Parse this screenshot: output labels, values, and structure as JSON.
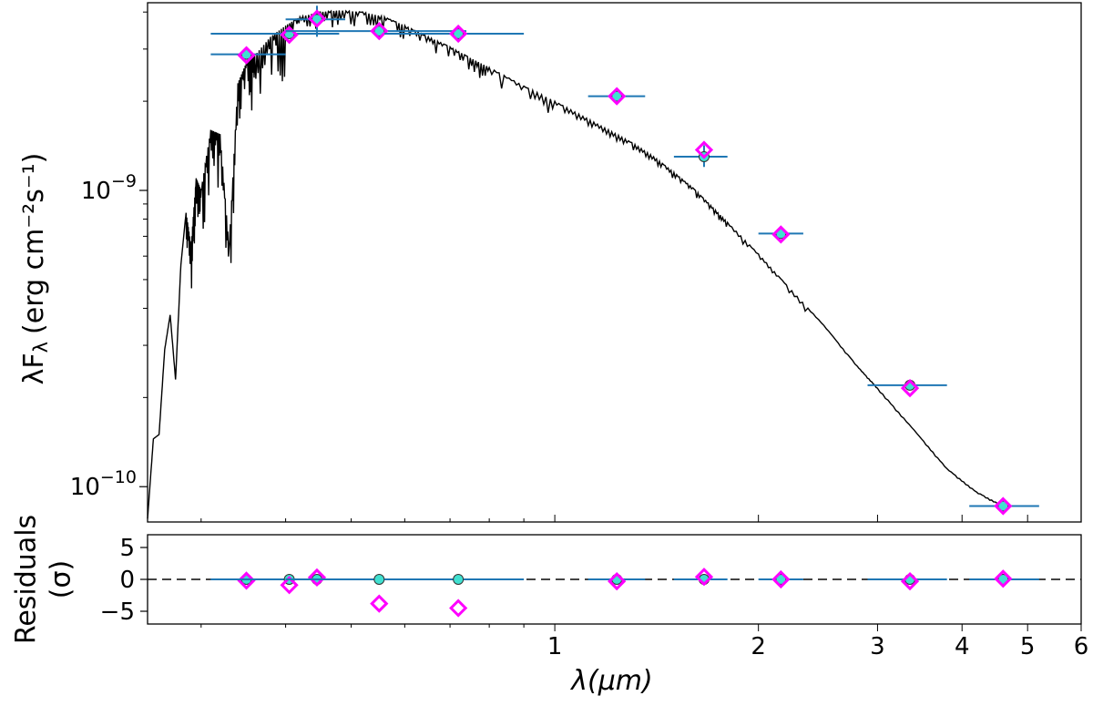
{
  "chart_data": [
    {
      "type": "scatter",
      "panel": "sed",
      "x_scale": "log",
      "y_scale": "log",
      "xlim": [
        0.25,
        6.0
      ],
      "ylim": [
        7.6e-11,
        4.3e-09
      ],
      "ylabel": "λF",
      "ylabel_sub": "λ",
      "ylabel_units": "(erg cm⁻²s⁻¹)",
      "y_ticks": [
        {
          "value": 1e-09,
          "base": "10",
          "exp": "−9"
        },
        {
          "value": 1e-10,
          "base": "10",
          "exp": "−10"
        }
      ],
      "model_spectrum": {
        "color": "#000000",
        "x": [
          0.25,
          0.255,
          0.26,
          0.265,
          0.27,
          0.275,
          0.28,
          0.285,
          0.29,
          0.295,
          0.3,
          0.31,
          0.32,
          0.33,
          0.34,
          0.35,
          0.36,
          0.38,
          0.4,
          0.42,
          0.45,
          0.48,
          0.52,
          0.56,
          0.6,
          0.65,
          0.7,
          0.75,
          0.8,
          0.9,
          1.0,
          1.1,
          1.2,
          1.3,
          1.4,
          1.5,
          1.6,
          1.7,
          1.8,
          2.0,
          2.2,
          2.5,
          2.8,
          3.0,
          3.4,
          3.8,
          4.2,
          4.6
        ],
        "y": [
          7.8e-11,
          1.45e-10,
          1.5e-10,
          2.9e-10,
          3.8e-10,
          2.3e-10,
          5.6e-10,
          8.4e-10,
          6.5e-10,
          1.1e-09,
          1e-09,
          1.6e-09,
          1.55e-09,
          6.4e-10,
          2.3e-09,
          2.7e-09,
          2.85e-09,
          3.3e-09,
          3.6e-09,
          3.85e-09,
          4e-09,
          4.05e-09,
          4e-09,
          3.85e-09,
          3.6e-09,
          3.3e-09,
          3.05e-09,
          2.8e-09,
          2.6e-09,
          2.25e-09,
          2e-09,
          1.78e-09,
          1.6e-09,
          1.45e-09,
          1.3e-09,
          1.15e-09,
          1.02e-09,
          8.9e-10,
          7.8e-10,
          6.1e-10,
          4.8e-10,
          3.5e-10,
          2.55e-10,
          2.15e-10,
          1.55e-10,
          1.15e-10,
          9.6e-11,
          8.6e-11
        ]
      },
      "photometry": {
        "error_bar_color": "#1f77b4",
        "observed_color": "#40e0d0",
        "model_color": "#ff00ff",
        "points": [
          {
            "x": 0.35,
            "y": 2.88e-09,
            "xerr": [
              0.31,
              0.4
            ],
            "model": 2.86e-09
          },
          {
            "x": 0.405,
            "y": 3.38e-09,
            "xerr": [
              0.31,
              0.48
            ],
            "model": 3.35e-09
          },
          {
            "x": 0.445,
            "y": 3.78e-09,
            "xerr": [
              0.4,
              0.49
            ],
            "yerr": [
              3.3e-09,
              4.2e-09
            ],
            "model": 3.8e-09
          },
          {
            "x": 0.55,
            "y": 3.45e-09,
            "xerr": [
              0.4,
              0.74
            ],
            "model": 3.45e-09
          },
          {
            "x": 0.72,
            "y": 3.38e-09,
            "xerr": [
              0.56,
              0.9
            ],
            "model": 3.38e-09
          },
          {
            "x": 1.235,
            "y": 2.08e-09,
            "xerr": [
              1.12,
              1.36
            ],
            "model": 2.08e-09
          },
          {
            "x": 1.662,
            "y": 1.3e-09,
            "xerr": [
              1.5,
              1.8
            ],
            "yerr": [
              1.2e-09,
              1.42e-09
            ],
            "model": 1.37e-09
          },
          {
            "x": 2.159,
            "y": 7.15e-10,
            "xerr": [
              2.0,
              2.33
            ],
            "model": 7.1e-10
          },
          {
            "x": 3.35,
            "y": 2.2e-10,
            "xerr": [
              2.9,
              3.8
            ],
            "model": 2.15e-10
          },
          {
            "x": 4.6,
            "y": 8.6e-11,
            "xerr": [
              4.1,
              5.2
            ],
            "model": 8.6e-11
          }
        ]
      }
    },
    {
      "type": "scatter",
      "panel": "residuals",
      "x_scale": "log",
      "xlim": [
        0.25,
        6.0
      ],
      "ylim": [
        -7,
        7
      ],
      "ylabel_line1": "Residuals",
      "ylabel_line2": "(σ)",
      "xlabel": "λ(μm)",
      "y_ticks": [
        {
          "value": 5,
          "label": "5"
        },
        {
          "value": 0,
          "label": "0"
        },
        {
          "value": -5,
          "label": "−5"
        }
      ],
      "x_ticks": [
        {
          "value": 1,
          "label": "1"
        },
        {
          "value": 2,
          "label": "2"
        },
        {
          "value": 3,
          "label": "3"
        },
        {
          "value": 4,
          "label": "4"
        },
        {
          "value": 5,
          "label": "5"
        },
        {
          "value": 6,
          "label": "6"
        }
      ],
      "zero_line": 0,
      "points": [
        {
          "x": 0.35,
          "observed": 0,
          "model": -0.2,
          "xerr": [
            0.31,
            0.4
          ]
        },
        {
          "x": 0.405,
          "observed": 0,
          "model": -0.9,
          "xerr": [
            0.31,
            0.48
          ]
        },
        {
          "x": 0.445,
          "observed": 0,
          "model": 0.3,
          "xerr": [
            0.4,
            0.49
          ]
        },
        {
          "x": 0.55,
          "observed": 0,
          "model": -3.8,
          "xerr": [
            0.4,
            0.74
          ]
        },
        {
          "x": 0.72,
          "observed": 0,
          "model": -4.5,
          "xerr": [
            0.56,
            0.9
          ]
        },
        {
          "x": 1.235,
          "observed": 0,
          "model": -0.3,
          "xerr": [
            1.12,
            1.36
          ]
        },
        {
          "x": 1.662,
          "observed": 0,
          "model": 0.4,
          "xerr": [
            1.5,
            1.8
          ]
        },
        {
          "x": 2.159,
          "observed": 0,
          "model": 0.0,
          "xerr": [
            2.0,
            2.33
          ]
        },
        {
          "x": 3.35,
          "observed": 0,
          "model": -0.3,
          "xerr": [
            2.9,
            3.8
          ]
        },
        {
          "x": 4.6,
          "observed": 0,
          "model": 0.1,
          "xerr": [
            4.1,
            5.2
          ]
        }
      ]
    }
  ]
}
